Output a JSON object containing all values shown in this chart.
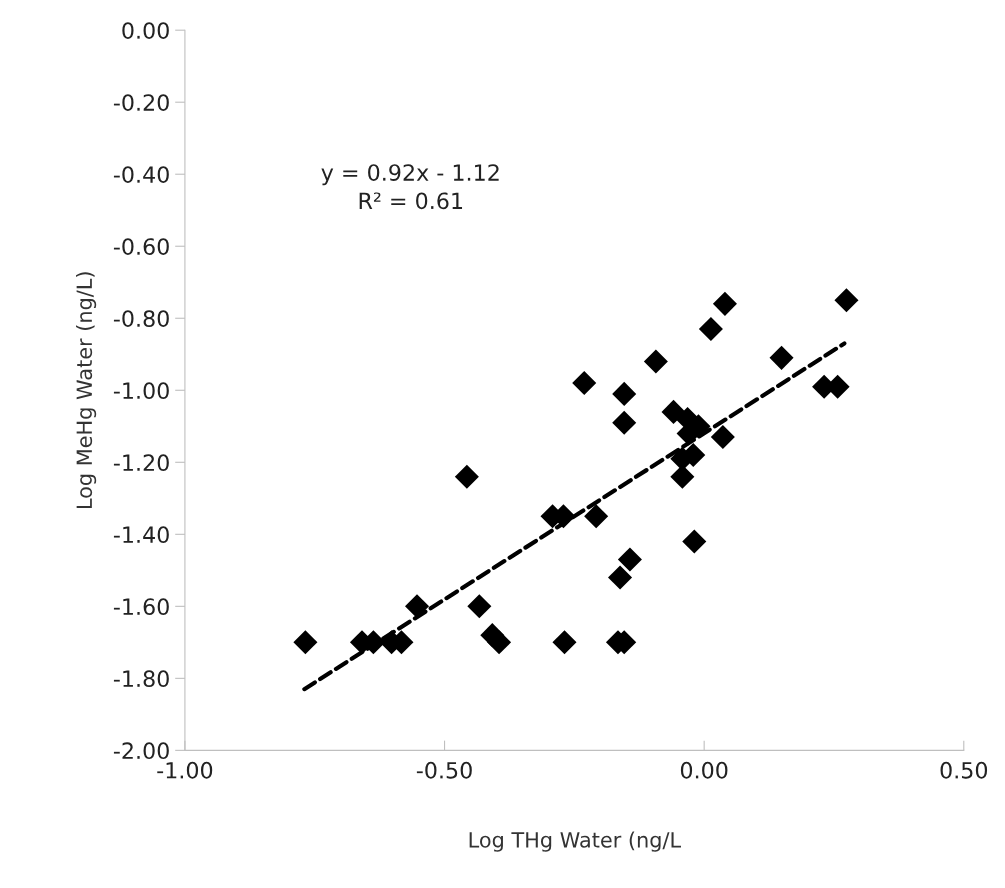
{
  "chart_data": {
    "type": "scatter",
    "xlabel": "Log THg Water (ng/L",
    "ylabel": "Log MeHg Water (ng/L)",
    "annotations": [
      "y = 0.92x - 1.12\nR² = 0.61"
    ],
    "marker": "diamond",
    "grid": false,
    "legend": false,
    "xlim": [
      -1.0,
      0.5
    ],
    "xticks": [
      {
        "value": -1.0,
        "label": "-1.00"
      },
      {
        "value": -0.5,
        "label": "-0.50"
      },
      {
        "value": 0.0,
        "label": "0.00"
      },
      {
        "value": 0.5,
        "label": "0.50"
      }
    ],
    "ylim": [
      -2.0,
      0.0
    ],
    "yticks": [
      {
        "value": -2.0,
        "label": "-2.00"
      },
      {
        "value": -1.8,
        "label": "-1.80"
      },
      {
        "value": -1.6,
        "label": "-1.60"
      },
      {
        "value": -1.4,
        "label": "-1.40"
      },
      {
        "value": -1.2,
        "label": "-1.20"
      },
      {
        "value": -1.0,
        "label": "-1.00"
      },
      {
        "value": -0.8,
        "label": "-0.80"
      },
      {
        "value": -0.6,
        "label": "-0.60"
      },
      {
        "value": -0.4,
        "label": "-0.40"
      },
      {
        "value": -0.2,
        "label": "-0.20"
      },
      {
        "value": 0.0,
        "label": "0.00"
      }
    ],
    "series": [
      {
        "color": "#000000",
        "x": [
          -0.768,
          -0.659,
          -0.637,
          -0.602,
          -0.583,
          -0.553,
          -0.457,
          -0.433,
          -0.408,
          -0.395,
          -0.292,
          -0.271,
          -0.208,
          -0.269,
          -0.231,
          -0.154,
          -0.154,
          -0.093,
          0.013,
          0.149,
          0.231,
          0.257,
          0.274,
          0.04,
          -0.059,
          -0.032,
          -0.011,
          -0.03,
          -0.021,
          -0.042,
          -0.042,
          0.036,
          -0.019,
          -0.143,
          -0.162,
          -0.166,
          -0.154
        ],
        "values": [
          -1.7,
          -1.7,
          -1.7,
          -1.7,
          -1.7,
          -1.6,
          -1.24,
          -1.6,
          -1.68,
          -1.7,
          -1.35,
          -1.35,
          -1.35,
          -1.7,
          -0.98,
          -1.01,
          -1.09,
          -0.92,
          -0.83,
          -0.91,
          -0.99,
          -0.99,
          -0.75,
          -0.76,
          -1.06,
          -1.08,
          -1.1,
          -1.12,
          -1.18,
          -1.19,
          -1.24,
          -1.13,
          -1.42,
          -1.47,
          -1.52,
          -1.7,
          -1.7
        ]
      },
      {
        "type": "line",
        "color": "#000000",
        "line_style": "dashed",
        "marker": "none",
        "x": [
          -0.77,
          0.27
        ],
        "values": [
          -1.83,
          -0.87
        ]
      }
    ]
  }
}
